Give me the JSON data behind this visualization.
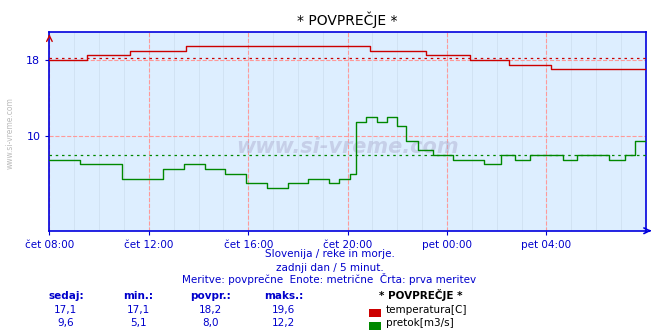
{
  "title": "* POVPREČJE *",
  "bg_color": "#ffffff",
  "plot_bg_color": "#ddeeff",
  "grid_color_h": "#ff9999",
  "grid_color_v": "#ff9999",
  "grid_color_minor": "#ccddee",
  "x_labels": [
    "čet 08:00",
    "čet 12:00",
    "čet 16:00",
    "čet 20:00",
    "pet 00:00",
    "pet 04:00"
  ],
  "x_ticks": [
    0,
    48,
    96,
    144,
    192,
    240
  ],
  "x_max": 288,
  "y_ticks": [
    10,
    18
  ],
  "y_min": 0,
  "y_max": 21,
  "temp_color": "#cc0000",
  "flow_color": "#008800",
  "avg_temp": 18.2,
  "avg_flow": 8.0,
  "watermark_text": "www.si-vreme.com",
  "side_text": "www.si-vreme.com",
  "subtitle1": "Slovenija / reke in morje.",
  "subtitle2": "zadnji dan / 5 minut.",
  "subtitle3": "Meritve: povprečne  Enote: metrične  Črta: prva meritev",
  "legend_title": "* POVPREČJE *",
  "legend_items": [
    {
      "label": "temperatura[C]",
      "color": "#cc0000"
    },
    {
      "label": "pretok[m3/s]",
      "color": "#008800"
    }
  ],
  "table_headers": [
    "sedaj:",
    "min.:",
    "povpr.:",
    "maks.:"
  ],
  "table_temp": [
    "17,1",
    "17,1",
    "18,2",
    "19,6"
  ],
  "table_flow": [
    "9,6",
    "5,1",
    "8,0",
    "12,2"
  ],
  "axis_color": "#0000dd",
  "tick_color": "#0000cc",
  "text_color": "#0000cc",
  "title_color": "#000000"
}
